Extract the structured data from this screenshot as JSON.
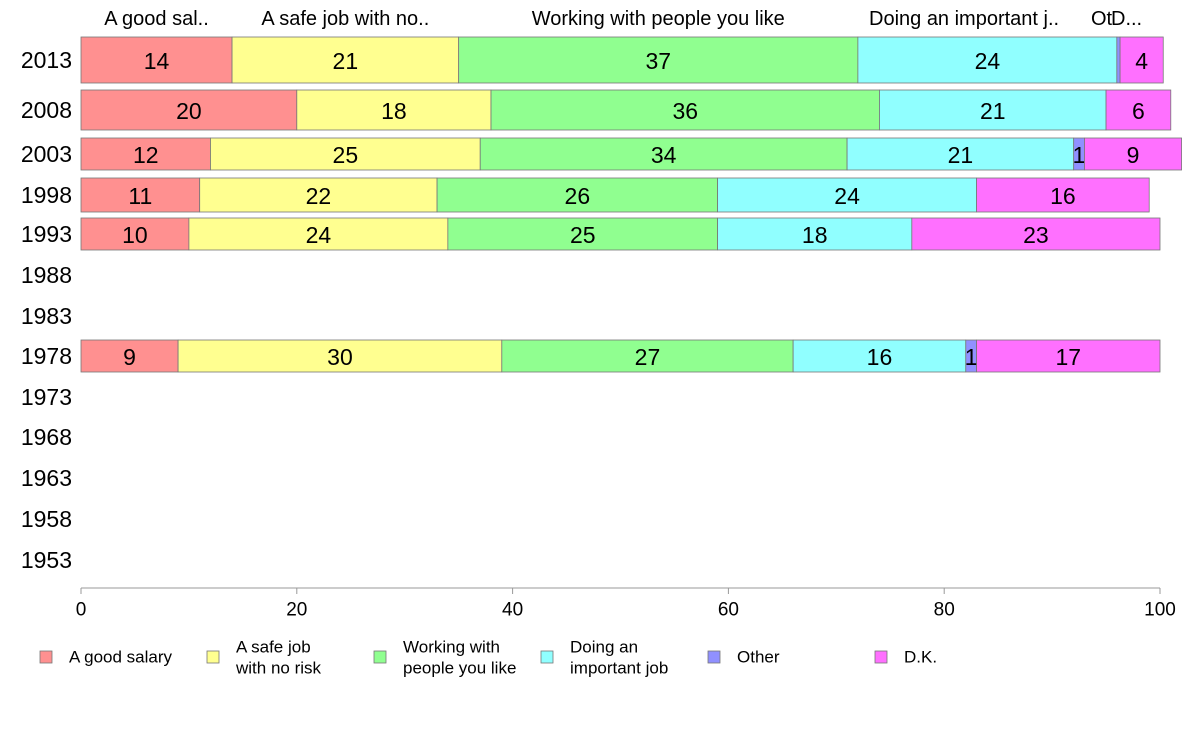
{
  "chart_data": {
    "type": "bar",
    "orientation": "horizontal",
    "stacked": true,
    "categories": [
      "2013",
      "2008",
      "2003",
      "1998",
      "1993",
      "1988",
      "1983",
      "1978",
      "1973",
      "1968",
      "1963",
      "1958",
      "1953"
    ],
    "series": [
      {
        "name": "A good salary",
        "top_label": "A good sal..",
        "legend_label": [
          "A good salary"
        ],
        "color": "#ff9090",
        "values": [
          14,
          20,
          12,
          11,
          10,
          null,
          null,
          9,
          null,
          null,
          null,
          null,
          null
        ]
      },
      {
        "name": "A safe job with no risk",
        "top_label": "A safe job with no..",
        "legend_label": [
          "A safe job",
          "with no risk"
        ],
        "color": "#ffff90",
        "values": [
          21,
          18,
          25,
          22,
          24,
          null,
          null,
          30,
          null,
          null,
          null,
          null,
          null
        ]
      },
      {
        "name": "Working with people you like",
        "top_label": "Working with people you like",
        "legend_label": [
          "Working with",
          "people you like"
        ],
        "color": "#90ff90",
        "values": [
          37,
          36,
          34,
          26,
          25,
          null,
          null,
          27,
          null,
          null,
          null,
          null,
          null
        ]
      },
      {
        "name": "Doing an important job",
        "top_label": "Doing an important j..",
        "legend_label": [
          "Doing an",
          "important job"
        ],
        "color": "#90ffff",
        "values": [
          24,
          21,
          21,
          24,
          18,
          null,
          null,
          16,
          null,
          null,
          null,
          null,
          null
        ]
      },
      {
        "name": "Other",
        "top_label": "Ot",
        "legend_label": [
          "Other"
        ],
        "color": "#9090ff",
        "values": [
          0.3,
          0,
          1,
          0,
          0,
          null,
          null,
          1,
          null,
          null,
          null,
          null,
          null
        ]
      },
      {
        "name": "D.K.",
        "top_label": "D...",
        "legend_label": [
          "D.K."
        ],
        "color": "#ff70ff",
        "values": [
          4,
          6,
          9,
          16,
          23,
          null,
          null,
          17,
          null,
          null,
          null,
          null,
          null
        ]
      }
    ],
    "data_labels": [
      [
        "14",
        "21",
        "37",
        "24",
        "",
        "4"
      ],
      [
        "20",
        "18",
        "36",
        "21",
        "",
        "6"
      ],
      [
        "12",
        "25",
        "34",
        "21",
        "1",
        "9"
      ],
      [
        "11",
        "22",
        "26",
        "24",
        "",
        "16"
      ],
      [
        "10",
        "24",
        "25",
        "18",
        "",
        "23"
      ],
      [
        "",
        "",
        "",
        "",
        "",
        ""
      ],
      [
        "",
        "",
        "",
        "",
        "",
        ""
      ],
      [
        "9",
        "30",
        "27",
        "16",
        "1",
        "17"
      ],
      [
        "",
        "",
        "",
        "",
        "",
        ""
      ],
      [
        "",
        "",
        "",
        "",
        "",
        ""
      ],
      [
        "",
        "",
        "",
        "",
        "",
        ""
      ],
      [
        "",
        "",
        "",
        "",
        "",
        ""
      ],
      [
        "",
        "",
        "",
        "",
        "",
        ""
      ]
    ],
    "top_labels_row": "2013",
    "xlim": [
      0,
      100
    ],
    "x_ticks": [
      "0",
      "20",
      "40",
      "60",
      "80",
      "100"
    ],
    "title": "",
    "xlabel": "",
    "ylabel": "",
    "grid": false,
    "legend_position": "bottom"
  }
}
